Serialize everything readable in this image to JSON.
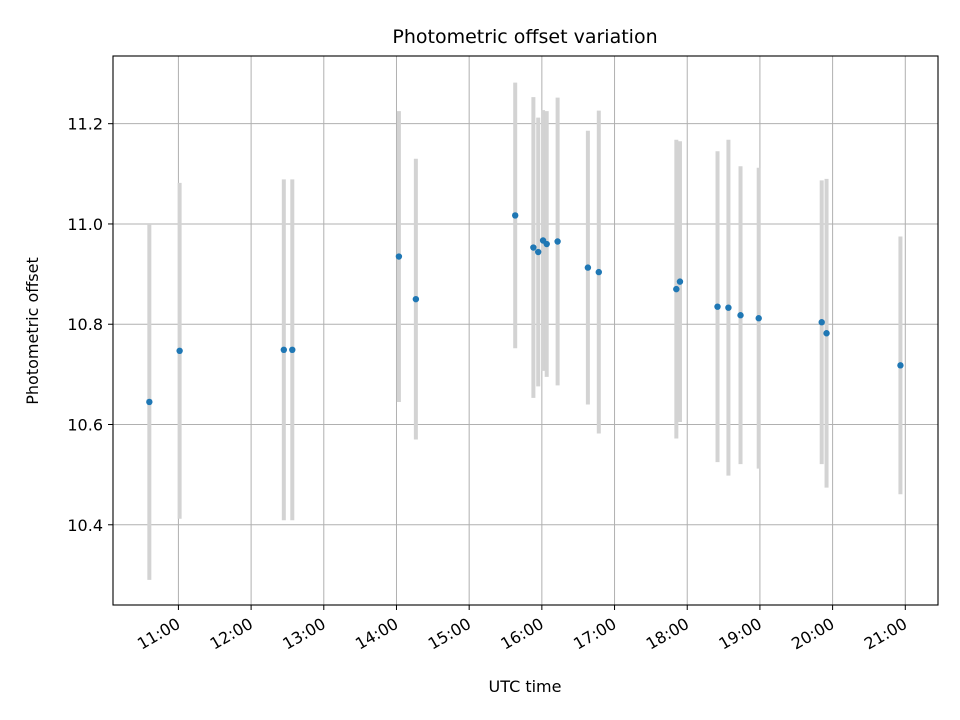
{
  "chart_data": {
    "type": "scatter",
    "title": "Photometric offset variation",
    "xlabel": "UTC time",
    "ylabel": "Photometric offset",
    "x_unit": "hours UTC",
    "xlim": [
      10.1,
      21.45
    ],
    "ylim": [
      10.24,
      11.335
    ],
    "x_ticks": [
      {
        "value": 11,
        "label": "11:00"
      },
      {
        "value": 12,
        "label": "12:00"
      },
      {
        "value": 13,
        "label": "13:00"
      },
      {
        "value": 14,
        "label": "14:00"
      },
      {
        "value": 15,
        "label": "15:00"
      },
      {
        "value": 16,
        "label": "16:00"
      },
      {
        "value": 17,
        "label": "17:00"
      },
      {
        "value": 18,
        "label": "18:00"
      },
      {
        "value": 19,
        "label": "19:00"
      },
      {
        "value": 20,
        "label": "20:00"
      },
      {
        "value": 21,
        "label": "21:00"
      }
    ],
    "y_ticks": [
      {
        "value": 10.4,
        "label": "10.4"
      },
      {
        "value": 10.6,
        "label": "10.6"
      },
      {
        "value": 10.8,
        "label": "10.8"
      },
      {
        "value": 11.0,
        "label": "11.0"
      },
      {
        "value": 11.2,
        "label": "11.2"
      }
    ],
    "grid": true,
    "point_color": "#1f77b4",
    "errorbar_color": "#d3d3d3",
    "points": [
      {
        "x": "10:36",
        "y": 10.645,
        "yerr": 0.355
      },
      {
        "x": "11:01",
        "y": 10.747,
        "yerr": 0.335
      },
      {
        "x": "12:27",
        "y": 10.749,
        "yerr": 0.34
      },
      {
        "x": "12:34",
        "y": 10.749,
        "yerr": 0.34
      },
      {
        "x": "14:02",
        "y": 10.935,
        "yerr": 0.29
      },
      {
        "x": "14:16",
        "y": 10.85,
        "yerr": 0.28
      },
      {
        "x": "15:38",
        "y": 11.017,
        "yerr": 0.265
      },
      {
        "x": "15:53",
        "y": 10.953,
        "yerr": 0.3
      },
      {
        "x": "15:57",
        "y": 10.944,
        "yerr": 0.268
      },
      {
        "x": "16:01",
        "y": 10.967,
        "yerr": 0.26
      },
      {
        "x": "16:04",
        "y": 10.96,
        "yerr": 0.265
      },
      {
        "x": "16:13",
        "y": 10.965,
        "yerr": 0.287
      },
      {
        "x": "16:38",
        "y": 10.913,
        "yerr": 0.273
      },
      {
        "x": "16:47",
        "y": 10.904,
        "yerr": 0.322
      },
      {
        "x": "17:51",
        "y": 10.87,
        "yerr": 0.298
      },
      {
        "x": "17:54",
        "y": 10.885,
        "yerr": 0.28
      },
      {
        "x": "18:25",
        "y": 10.835,
        "yerr": 0.31
      },
      {
        "x": "18:34",
        "y": 10.833,
        "yerr": 0.335
      },
      {
        "x": "18:44",
        "y": 10.818,
        "yerr": 0.297
      },
      {
        "x": "18:59",
        "y": 10.812,
        "yerr": 0.3
      },
      {
        "x": "19:51",
        "y": 10.804,
        "yerr": 0.283
      },
      {
        "x": "19:55",
        "y": 10.782,
        "yerr": 0.308
      },
      {
        "x": "20:56",
        "y": 10.718,
        "yerr": 0.257
      }
    ]
  }
}
